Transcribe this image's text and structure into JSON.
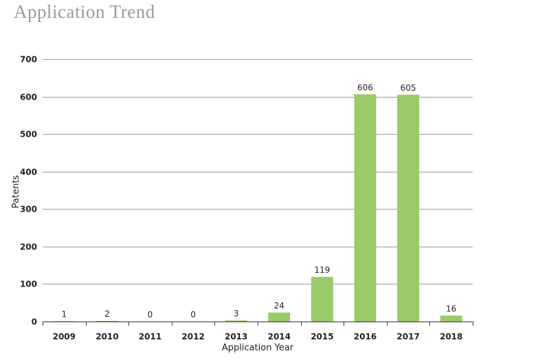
{
  "page": {
    "title": "Application  Trend"
  },
  "chart_data": {
    "type": "bar",
    "title": "Application  Trend",
    "xlabel": "Application Year",
    "ylabel": "Patents",
    "categories": [
      "2009",
      "2010",
      "2011",
      "2012",
      "2013",
      "2014",
      "2015",
      "2016",
      "2017",
      "2018"
    ],
    "values": [
      1,
      2,
      0,
      0,
      3,
      24,
      119,
      606,
      605,
      16
    ],
    "data_labels": [
      "1",
      "2",
      "0",
      "0",
      "3",
      "24",
      "119",
      "606",
      "605",
      "16"
    ],
    "ylim": [
      0,
      700
    ],
    "yticks": [
      0,
      100,
      200,
      300,
      400,
      500,
      600,
      700
    ],
    "ytick_labels": [
      "0",
      "100",
      "200",
      "300",
      "400",
      "500",
      "600",
      "700"
    ],
    "grid": true,
    "legend": "none",
    "colors": {
      "bar": "#9aca69",
      "grid": "#999999",
      "axis": "#333333",
      "title": "#9a9a9a"
    }
  }
}
